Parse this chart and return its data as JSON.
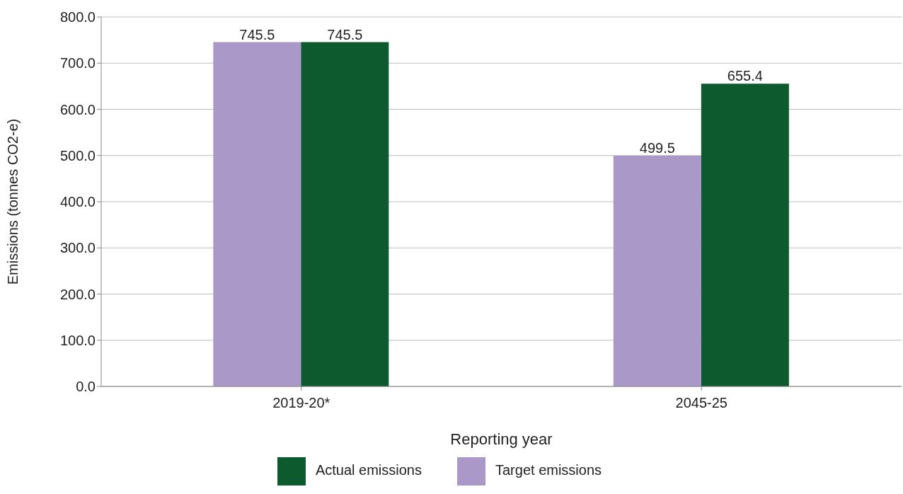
{
  "chart_data": {
    "type": "bar",
    "categories": [
      "2019-20*",
      "2045-25"
    ],
    "series": [
      {
        "name": "Target emissions",
        "color": "#a998c8",
        "values": [
          745.5,
          499.5
        ]
      },
      {
        "name": "Actual emissions",
        "color": "#0d5a2f",
        "values": [
          745.5,
          655.4
        ]
      }
    ],
    "xlabel": "Reporting year",
    "ylabel": "Emissions (tonnes CO2-e)",
    "ylim": [
      0,
      800
    ],
    "yticks": [
      {
        "value": 0,
        "label": "0.0"
      },
      {
        "value": 100,
        "label": "100.0"
      },
      {
        "value": 200,
        "label": "200.0"
      },
      {
        "value": 300,
        "label": "300.0"
      },
      {
        "value": 400,
        "label": "400.0"
      },
      {
        "value": 500,
        "label": "500.0"
      },
      {
        "value": 600,
        "label": "600.0"
      },
      {
        "value": 700,
        "label": "700.0"
      },
      {
        "value": 800,
        "label": "800.0"
      }
    ],
    "grid": "y",
    "legend": "bottom",
    "data_labels": true
  }
}
